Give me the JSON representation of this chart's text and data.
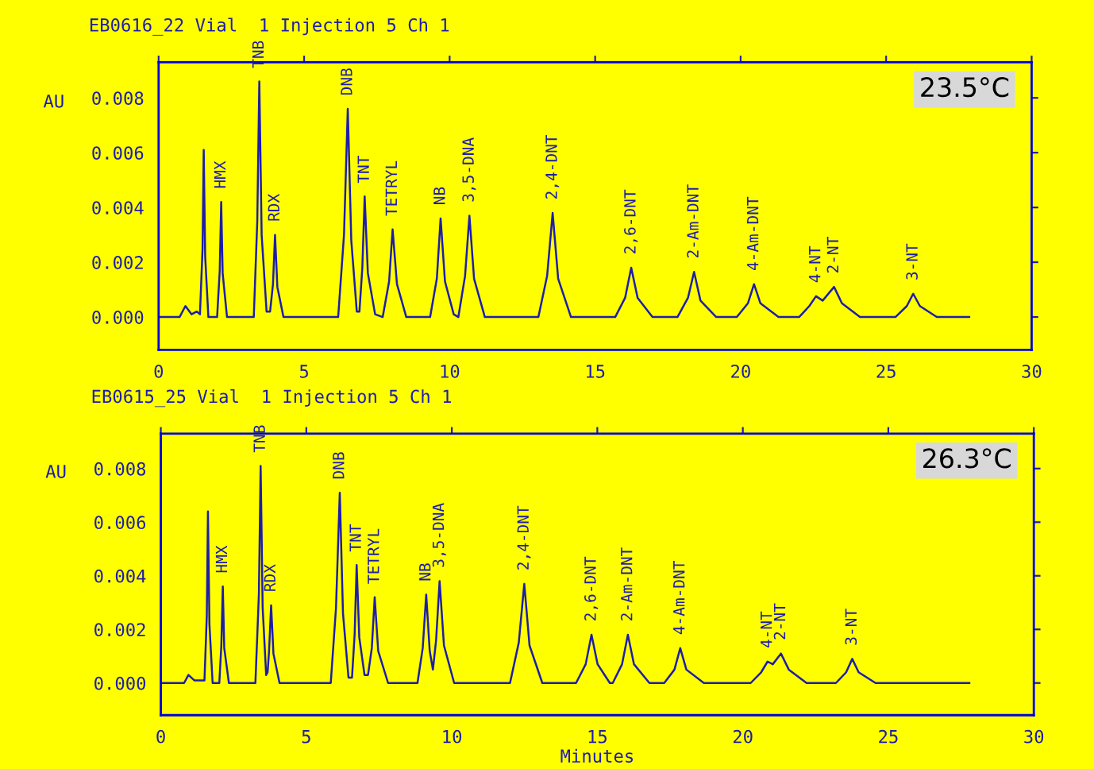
{
  "chart_data": [
    {
      "type": "line",
      "title": "EB0616_22 Vial  1 Injection 5 Ch 1",
      "ylabel": "AU",
      "x": [
        0,
        0.72,
        0.92,
        1.13,
        1.31,
        1.42,
        1.51,
        1.55,
        1.6,
        1.71,
        2.01,
        2.1,
        2.15,
        2.2,
        2.35,
        3.27,
        3.39,
        3.46,
        3.54,
        3.71,
        3.83,
        3.93,
        4.0,
        4.08,
        4.29,
        6.17,
        6.37,
        6.5,
        6.62,
        6.81,
        6.9,
        7.0,
        7.08,
        7.19,
        7.44,
        7.7,
        7.92,
        8.04,
        8.19,
        8.51,
        9.33,
        9.56,
        9.69,
        9.84,
        10.14,
        10.3,
        10.53,
        10.68,
        10.84,
        11.21,
        13.05,
        13.35,
        13.54,
        13.73,
        14.17,
        15.69,
        16.03,
        16.24,
        16.46,
        16.97,
        17.83,
        18.19,
        18.4,
        18.62,
        19.16,
        19.87,
        20.25,
        20.46,
        20.68,
        21.3,
        22.01,
        22.36,
        22.59,
        22.82,
        23.21,
        23.48,
        24.1,
        25.32,
        25.71,
        25.93,
        26.16,
        26.74,
        27.86
      ],
      "series": [
        {
          "color": "#1e1ea8",
          "values": [
            0,
            0,
            0.0004,
            0.0001,
            0.0002,
            0.0001,
            0.0025,
            0.0061,
            0.0022,
            0,
            0,
            0.0017,
            0.0042,
            0.0016,
            0,
            0,
            0.0035,
            0.0086,
            0.003,
            0.0002,
            0.0002,
            0.0012,
            0.003,
            0.0011,
            0,
            0,
            0.003,
            0.0076,
            0.0028,
            0.0002,
            0.0002,
            0.0018,
            0.0044,
            0.0016,
            0.0001,
            0,
            0.0013,
            0.0032,
            0.0012,
            0,
            0,
            0.0014,
            0.0036,
            0.0013,
            0.0001,
            0,
            0.0015,
            0.0037,
            0.0014,
            0,
            0,
            0.0015,
            0.0038,
            0.0014,
            0,
            0,
            0.0007,
            0.0018,
            0.0007,
            0,
            0,
            0.0007,
            0.00165,
            0.0006,
            0,
            0,
            0.0005,
            0.0012,
            0.0005,
            0,
            0,
            0.0004,
            0.00076,
            0.0006,
            0.0011,
            0.0005,
            0,
            0,
            0.0004,
            0.00085,
            0.0004,
            0,
            0
          ]
        }
      ],
      "xlim": [
        0,
        30
      ],
      "ylim": [
        -0.0012,
        0.0093
      ],
      "xticks": [
        0,
        5,
        10,
        15,
        20,
        25,
        30
      ],
      "yticks": [
        {
          "value": 0,
          "label": "0.000"
        },
        {
          "value": 0.002,
          "label": "0.002"
        },
        {
          "value": 0.004,
          "label": "0.004"
        },
        {
          "value": 0.006,
          "label": "0.006"
        },
        {
          "value": 0.008,
          "label": "0.008"
        }
      ],
      "grid": false,
      "legend": false,
      "annotations": [
        {
          "text": "HMX",
          "x": 2.15,
          "y": 0.0042
        },
        {
          "text": "TNB",
          "x": 3.46,
          "y": 0.0086
        },
        {
          "text": "RDX",
          "x": 4.0,
          "y": 0.003
        },
        {
          "text": "DNB",
          "x": 6.5,
          "y": 0.0076
        },
        {
          "text": "TNT",
          "x": 7.08,
          "y": 0.0044
        },
        {
          "text": "TETRYL",
          "x": 8.04,
          "y": 0.0032
        },
        {
          "text": "NB",
          "x": 9.69,
          "y": 0.0036
        },
        {
          "text": "3,5-DNA",
          "x": 10.68,
          "y": 0.0037
        },
        {
          "text": "2,4-DNT",
          "x": 13.54,
          "y": 0.0038
        },
        {
          "text": "2,6-DNT",
          "x": 16.24,
          "y": 0.0018
        },
        {
          "text": "2-Am-DNT",
          "x": 18.4,
          "y": 0.00165
        },
        {
          "text": "4-Am-DNT",
          "x": 20.46,
          "y": 0.0012
        },
        {
          "text": "4-NT",
          "x": 22.59,
          "y": 0.00076
        },
        {
          "text": "2-NT",
          "x": 23.21,
          "y": 0.0011
        },
        {
          "text": "3-NT",
          "x": 25.93,
          "y": 0.00085
        },
        "23.5°C"
      ]
    },
    {
      "type": "line",
      "title": "EB0615_25 Vial  1 Injection 5 Ch 1",
      "ylabel": "AU",
      "xlabel": "Minutes",
      "x": [
        0,
        0.8,
        0.95,
        1.15,
        1.4,
        1.5,
        1.58,
        1.62,
        1.67,
        1.78,
        2.01,
        2.08,
        2.13,
        2.18,
        2.34,
        3.25,
        3.37,
        3.43,
        3.5,
        3.62,
        3.67,
        3.72,
        3.79,
        3.87,
        4.08,
        5.84,
        6.02,
        6.15,
        6.26,
        6.45,
        6.57,
        6.66,
        6.73,
        6.82,
        7.0,
        7.12,
        7.25,
        7.35,
        7.47,
        7.81,
        8.82,
        9.0,
        9.12,
        9.24,
        9.35,
        9.46,
        9.58,
        9.73,
        10.08,
        12.0,
        12.3,
        12.49,
        12.67,
        13.11,
        14.27,
        14.6,
        14.8,
        15.01,
        15.43,
        15.53,
        15.85,
        16.05,
        16.26,
        16.79,
        17.3,
        17.65,
        17.85,
        18.06,
        18.66,
        20.27,
        20.63,
        20.85,
        21.03,
        21.31,
        21.58,
        22.19,
        23.2,
        23.55,
        23.76,
        23.98,
        24.56,
        27.79
      ],
      "series": [
        {
          "color": "#1e1ea8",
          "values": [
            0,
            0,
            0.0003,
            0.0001,
            0.0001,
            0.0001,
            0.0025,
            0.0064,
            0.0022,
            0,
            0,
            0.0014,
            0.0036,
            0.0013,
            0,
            0,
            0.0033,
            0.0081,
            0.0028,
            0.0003,
            0.0004,
            0.0012,
            0.0029,
            0.0011,
            0,
            0,
            0.0028,
            0.0071,
            0.0026,
            0.0002,
            0.0002,
            0.0018,
            0.0044,
            0.0017,
            0.0003,
            0.0003,
            0.0013,
            0.0032,
            0.0012,
            0,
            0,
            0.0013,
            0.0033,
            0.0012,
            0.0005,
            0.0016,
            0.0038,
            0.0014,
            0,
            0,
            0.0015,
            0.0037,
            0.0014,
            0,
            0,
            0.0007,
            0.0018,
            0.0007,
            0,
            0,
            0.0007,
            0.0018,
            0.0007,
            0,
            0,
            0.0005,
            0.0013,
            0.0005,
            0,
            0,
            0.0004,
            0.0008,
            0.0007,
            0.0011,
            0.0005,
            0,
            0,
            0.0004,
            0.0009,
            0.0004,
            0,
            0
          ]
        }
      ],
      "xlim": [
        0,
        30
      ],
      "ylim": [
        -0.0012,
        0.0093
      ],
      "xticks": [
        0,
        5,
        10,
        15,
        20,
        25,
        30
      ],
      "yticks": [
        {
          "value": 0,
          "label": "0.000"
        },
        {
          "value": 0.002,
          "label": "0.002"
        },
        {
          "value": 0.004,
          "label": "0.004"
        },
        {
          "value": 0.006,
          "label": "0.006"
        },
        {
          "value": 0.008,
          "label": "0.008"
        }
      ],
      "grid": false,
      "legend": false,
      "annotations": [
        {
          "text": "HMX",
          "x": 2.13,
          "y": 0.0036
        },
        {
          "text": "TNB",
          "x": 3.43,
          "y": 0.0081
        },
        {
          "text": "RDX",
          "x": 3.79,
          "y": 0.0029
        },
        {
          "text": "DNB",
          "x": 6.15,
          "y": 0.0071
        },
        {
          "text": "TNT",
          "x": 6.73,
          "y": 0.0044
        },
        {
          "text": "TETRYL",
          "x": 7.35,
          "y": 0.0032
        },
        {
          "text": "NB",
          "x": 9.12,
          "y": 0.0033
        },
        {
          "text": "3,5-DNA",
          "x": 9.58,
          "y": 0.0038
        },
        {
          "text": "2,4-DNT",
          "x": 12.49,
          "y": 0.0037
        },
        {
          "text": "2,6-DNT",
          "x": 14.8,
          "y": 0.0018
        },
        {
          "text": "2-Am-DNT",
          "x": 16.05,
          "y": 0.0018
        },
        {
          "text": "4-Am-DNT",
          "x": 17.85,
          "y": 0.0013
        },
        {
          "text": "4-NT",
          "x": 20.85,
          "y": 0.0008
        },
        {
          "text": "2-NT",
          "x": 21.31,
          "y": 0.0011
        },
        {
          "text": "3-NT",
          "x": 23.76,
          "y": 0.0009
        },
        "26.3°C"
      ]
    }
  ]
}
